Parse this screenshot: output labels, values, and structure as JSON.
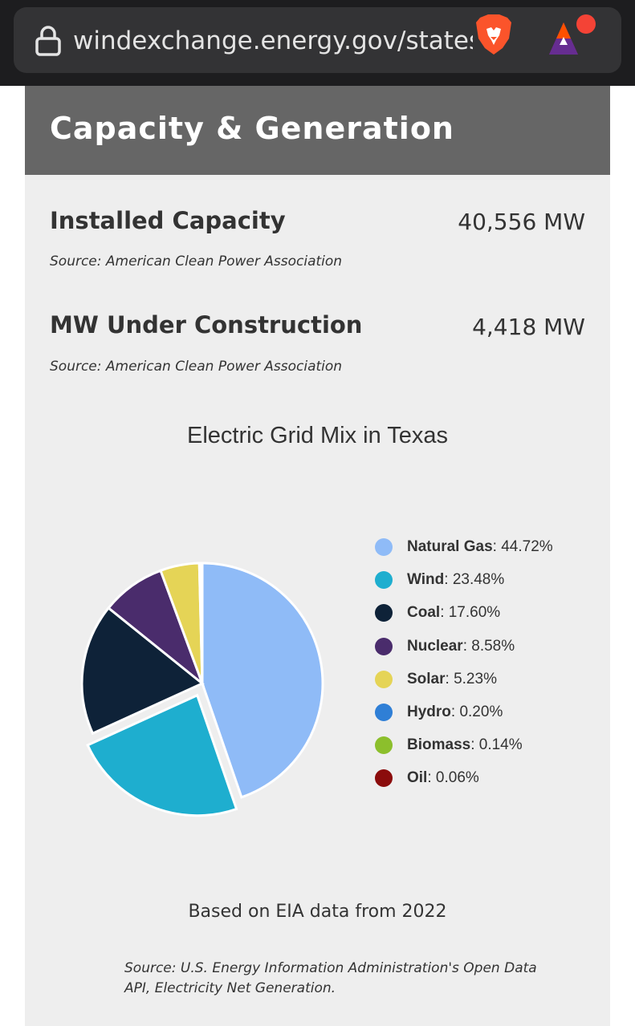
{
  "browser": {
    "url": "windexchange.energy.gov/states/tx",
    "icons": [
      "lock-icon",
      "brave-lion-icon",
      "bat-rewards-icon"
    ]
  },
  "section": {
    "title": "Capacity & Generation"
  },
  "stats": [
    {
      "label": "Installed Capacity",
      "value": "40,556 MW",
      "source": "Source: American Clean Power Association"
    },
    {
      "label": "MW Under Construction",
      "value": "4,418 MW",
      "source": "Source: American Clean Power Association"
    }
  ],
  "chart_data": {
    "type": "pie",
    "title": "Electric Grid Mix in Texas",
    "categories": [
      "Natural Gas",
      "Wind",
      "Coal",
      "Nuclear",
      "Solar",
      "Hydro",
      "Biomass",
      "Oil"
    ],
    "values": [
      44.72,
      23.48,
      17.6,
      8.58,
      5.23,
      0.2,
      0.14,
      0.06
    ],
    "value_labels": [
      "44.72%",
      "23.48%",
      "17.60%",
      "8.58%",
      "5.23%",
      "0.20%",
      "0.14%",
      "0.06%"
    ],
    "colors": [
      "#8fbbf7",
      "#1eaecf",
      "#0e2238",
      "#4a2c6c",
      "#e5d456",
      "#2f7fd6",
      "#8cbf2c",
      "#8b0c0c"
    ],
    "exploded_index": 1,
    "legend_position": "right"
  },
  "footer": {
    "based_on": "Based on EIA data from 2022",
    "source": "Source: U.S. Energy Information Administration's Open Data API, Electricity Net Generation."
  }
}
